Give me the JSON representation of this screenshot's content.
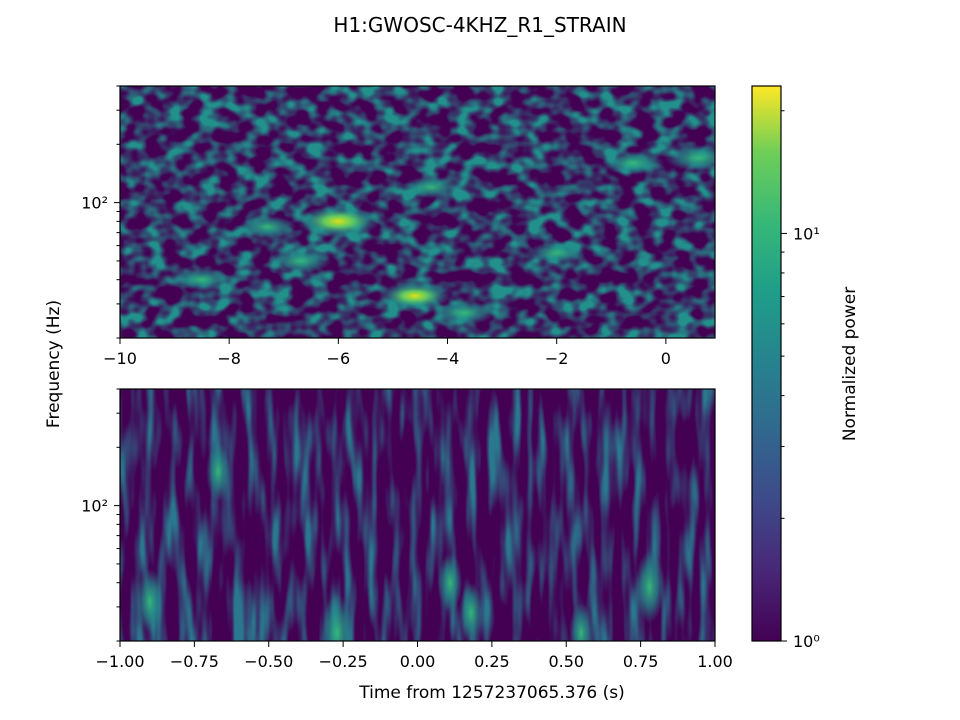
{
  "title": "H1:GWOSC-4KHZ_R1_STRAIN",
  "chart_data": [
    {
      "type": "heatmap",
      "panel": "top",
      "title": "",
      "xlim": [
        -10,
        0.9
      ],
      "xticks": [
        -10,
        -8,
        -6,
        -4,
        -2,
        0
      ],
      "xtick_labels": [
        "−10",
        "−8",
        "−6",
        "−4",
        "−2",
        "0"
      ],
      "ylabel": "Frequency (Hz)",
      "yscale": "log",
      "ylim": [
        20,
        400
      ],
      "ytick_label": "10²",
      "ytick_value": 100,
      "hotspots": [
        {
          "x": -6.0,
          "y": 80,
          "power": 14
        },
        {
          "x": -4.6,
          "y": 33,
          "power": 9
        },
        {
          "x": -3.7,
          "y": 27,
          "power": 7
        },
        {
          "x": -6.7,
          "y": 50,
          "power": 7
        },
        {
          "x": -0.6,
          "y": 160,
          "power": 7
        },
        {
          "x": 0.6,
          "y": 170,
          "power": 8
        },
        {
          "x": -8.5,
          "y": 40,
          "power": 6
        },
        {
          "x": -7.3,
          "y": 75,
          "power": 6
        },
        {
          "x": -2.0,
          "y": 55,
          "power": 6
        },
        {
          "x": -4.3,
          "y": 120,
          "power": 6
        }
      ]
    },
    {
      "type": "heatmap",
      "panel": "bottom",
      "title": "",
      "xlim": [
        -1.0,
        1.0
      ],
      "xticks": [
        -1.0,
        -0.75,
        -0.5,
        -0.25,
        0.0,
        0.25,
        0.5,
        0.75,
        1.0
      ],
      "xtick_labels": [
        "−1.00",
        "−0.75",
        "−0.50",
        "−0.25",
        "0.00",
        "0.25",
        "0.50",
        "0.75",
        "1.00"
      ],
      "xlabel": "Time from 1257237065.376 (s)",
      "yscale": "log",
      "ylim": [
        20,
        400
      ],
      "ytick_label": "10²",
      "ytick_value": 100,
      "hotspots": [
        {
          "x": -0.27,
          "y": 22,
          "power": 8
        },
        {
          "x": 0.78,
          "y": 38,
          "power": 7
        },
        {
          "x": -0.9,
          "y": 32,
          "power": 6
        },
        {
          "x": 0.18,
          "y": 28,
          "power": 5
        },
        {
          "x": -0.67,
          "y": 150,
          "power": 5
        },
        {
          "x": 0.55,
          "y": 22,
          "power": 5
        },
        {
          "x": 0.11,
          "y": 40,
          "power": 5
        }
      ]
    }
  ],
  "colorbar": {
    "label": "Normalized power",
    "scale": "log",
    "range": [
      1,
      23
    ],
    "tick_labels": [
      "10⁰",
      "10¹"
    ],
    "tick_values": [
      1,
      10
    ],
    "colormap": "viridis"
  }
}
